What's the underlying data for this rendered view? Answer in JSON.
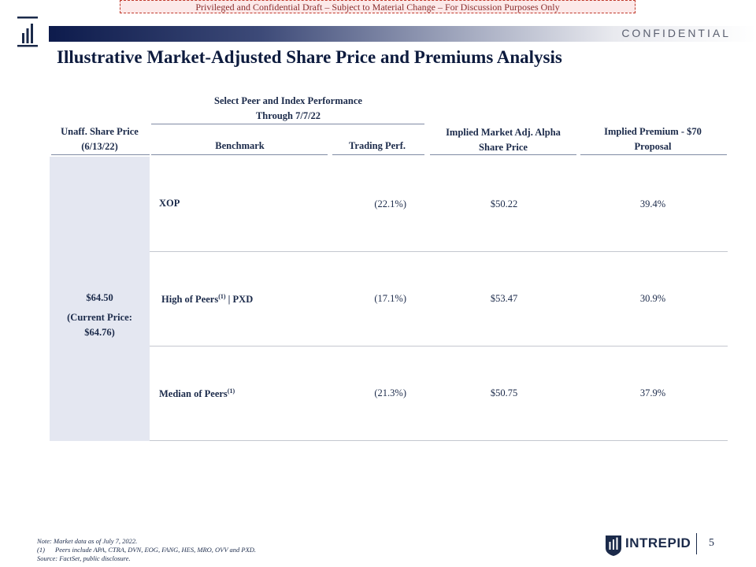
{
  "banner": "Privileged and Confidential Draft – Subject to Material Change – For Discussion Purposes Only",
  "confidential": "CONFIDENTIAL",
  "title": "Illustrative Market-Adjusted Share Price and Premiums Analysis",
  "headers": {
    "group_line1": "Select Peer and Index Performance",
    "group_line2": "Through 7/7/22",
    "unaff_line1": "Unaff. Share Price",
    "unaff_line2": "(6/13/22)",
    "benchmark": "Benchmark",
    "trading_perf": "Trading Perf.",
    "alpha_line1": "Implied Market Adj. Alpha",
    "alpha_line2": "Share Price",
    "premium_line1": "Implied Premium - $70",
    "premium_line2": "Proposal"
  },
  "unaffected": {
    "price": "$64.50",
    "current_line1": "(Current Price:",
    "current_line2": "$64.76)"
  },
  "rows": [
    {
      "benchmark": "XOP",
      "sup": "",
      "suffix": "",
      "trading_perf": "(22.1%)",
      "implied_price": "$50.22",
      "implied_premium": "39.4%"
    },
    {
      "benchmark": "High of Peers",
      "sup": "(1)",
      "suffix": "| PXD",
      "trading_perf": "(17.1%)",
      "implied_price": "$53.47",
      "implied_premium": "30.9%"
    },
    {
      "benchmark": "Median of Peers",
      "sup": "(1)",
      "suffix": "",
      "trading_perf": "(21.3%)",
      "implied_price": "$50.75",
      "implied_premium": "37.9%"
    }
  ],
  "footnotes": {
    "note": "Note: Market data as of July 7, 2022.",
    "fn1_num": "(1)",
    "fn1_text": "Peers include APA, CTRA, DVN, EOG, FANG, HES, MRO, OVV and PXD.",
    "source": "Source: FactSet, public disclosure."
  },
  "logo_text": "INTREPID",
  "page_number": "5",
  "colors": {
    "navy": "#0d1b4c",
    "panel": "#e4e7f1",
    "banner_border": "#c0392b"
  }
}
